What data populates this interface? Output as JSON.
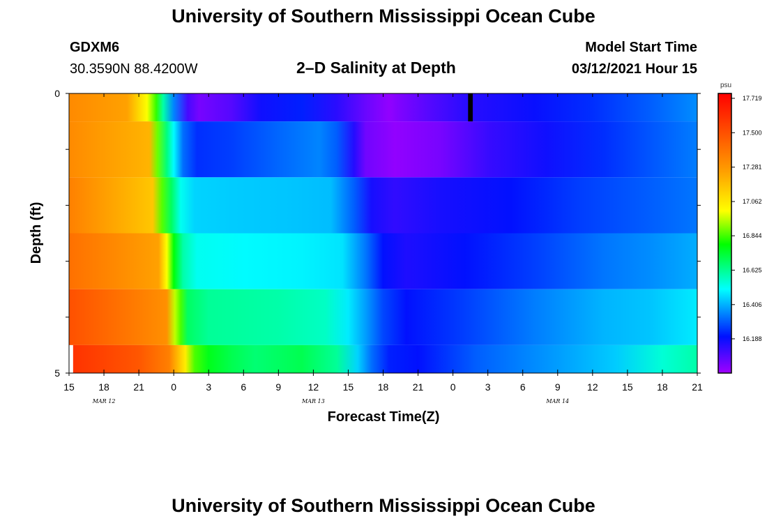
{
  "header": {
    "title": "University of Southern Mississippi Ocean Cube",
    "station_id": "GDXM6",
    "station_coords": "30.3590N 88.4200W",
    "chart_title": "2–D Salinity at Depth",
    "model_label": "Model Start Time",
    "model_start": "03/12/2021 Hour 15"
  },
  "footer": {
    "title": "University of Southern Mississippi Ocean Cube"
  },
  "chart_data": {
    "type": "heatmap",
    "xlabel": "Forecast Time(Z)",
    "ylabel": "Depth (ft)",
    "x_ticks": [
      "15",
      "18",
      "21",
      "0",
      "3",
      "6",
      "9",
      "12",
      "15",
      "18",
      "21",
      "0",
      "3",
      "6",
      "9",
      "12",
      "15",
      "18",
      "21"
    ],
    "x_dates": [
      {
        "label": "MAR 12",
        "tick_index": 1
      },
      {
        "label": "MAR 13",
        "tick_index": 7
      },
      {
        "label": "MAR 14",
        "tick_index": 14
      }
    ],
    "y_ticks": [
      "0",
      "5"
    ],
    "ylim": [
      0,
      5
    ],
    "x_hours": [
      0,
      54
    ],
    "colorbar": {
      "unit": "psu",
      "labels": [
        "17.719",
        "17.500",
        "17.281",
        "17.062",
        "16.844",
        "16.625",
        "16.406",
        "16.188"
      ],
      "min": 15.97,
      "max": 17.75
    },
    "depth_layers": [
      {
        "depth": "0",
        "keys": [
          [
            0,
            17.32
          ],
          [
            5,
            17.25
          ],
          [
            6.7,
            17.0
          ],
          [
            7.5,
            16.83
          ],
          [
            8.1,
            16.6
          ],
          [
            9.0,
            16.35
          ],
          [
            10.2,
            16.1
          ],
          [
            11.2,
            16.03
          ],
          [
            14,
            16.08
          ],
          [
            16.5,
            16.18
          ],
          [
            20,
            16.22
          ],
          [
            23,
            16.14
          ],
          [
            25.5,
            16.05
          ],
          [
            27.5,
            15.99
          ],
          [
            28.5,
            16.02
          ],
          [
            31,
            16.08
          ],
          [
            34,
            16.14
          ],
          [
            40,
            16.19
          ],
          [
            45,
            16.24
          ],
          [
            50,
            16.3
          ],
          [
            54,
            16.36
          ]
        ],
        "missing": [
          [
            34.3,
            34.7
          ]
        ]
      },
      {
        "depth": "1",
        "keys": [
          [
            0,
            17.32
          ],
          [
            6.9,
            17.2
          ],
          [
            7.6,
            16.88
          ],
          [
            8.4,
            16.65
          ],
          [
            9.0,
            16.5
          ],
          [
            9.8,
            16.32
          ],
          [
            11,
            16.24
          ],
          [
            14,
            16.26
          ],
          [
            18,
            16.31
          ],
          [
            21.5,
            16.35
          ],
          [
            23,
            16.3
          ],
          [
            24.5,
            16.15
          ],
          [
            25.5,
            16.04
          ],
          [
            28,
            15.99
          ],
          [
            32,
            16.03
          ],
          [
            36,
            16.12
          ],
          [
            41,
            16.18
          ],
          [
            46,
            16.24
          ],
          [
            54,
            16.34
          ]
        ]
      },
      {
        "depth": "2",
        "keys": [
          [
            0,
            17.35
          ],
          [
            7.2,
            17.15
          ],
          [
            8,
            16.86
          ],
          [
            8.8,
            16.68
          ],
          [
            9.6,
            16.52
          ],
          [
            10.8,
            16.45
          ],
          [
            14,
            16.44
          ],
          [
            19,
            16.43
          ],
          [
            22.5,
            16.42
          ],
          [
            24.5,
            16.3
          ],
          [
            26,
            16.17
          ],
          [
            28,
            16.13
          ],
          [
            32,
            16.17
          ],
          [
            38,
            16.2
          ],
          [
            44,
            16.26
          ],
          [
            50,
            16.3
          ],
          [
            54,
            16.33
          ]
        ]
      },
      {
        "depth": "3",
        "keys": [
          [
            0,
            17.4
          ],
          [
            7.7,
            17.25
          ],
          [
            8.4,
            17.0
          ],
          [
            9,
            16.78
          ],
          [
            9.8,
            16.6
          ],
          [
            11,
            16.52
          ],
          [
            15,
            16.5
          ],
          [
            20,
            16.49
          ],
          [
            23.5,
            16.47
          ],
          [
            25.5,
            16.33
          ],
          [
            27,
            16.2
          ],
          [
            29,
            16.16
          ],
          [
            34,
            16.2
          ],
          [
            40,
            16.26
          ],
          [
            46,
            16.33
          ],
          [
            50,
            16.36
          ],
          [
            54,
            16.4
          ]
        ]
      },
      {
        "depth": "4",
        "keys": [
          [
            0,
            17.5
          ],
          [
            8.4,
            17.3
          ],
          [
            9.1,
            16.95
          ],
          [
            9.6,
            16.85
          ],
          [
            10.2,
            16.68
          ],
          [
            12,
            16.62
          ],
          [
            18,
            16.6
          ],
          [
            22,
            16.57
          ],
          [
            24,
            16.48
          ],
          [
            25.5,
            16.38
          ],
          [
            27,
            16.27
          ],
          [
            29,
            16.2
          ],
          [
            34,
            16.26
          ],
          [
            40,
            16.34
          ],
          [
            46,
            16.41
          ],
          [
            50,
            16.43
          ],
          [
            54,
            16.48
          ]
        ]
      },
      {
        "depth": "5",
        "keys": [
          [
            0,
            17.6
          ],
          [
            6,
            17.48
          ],
          [
            8.6,
            17.35
          ],
          [
            10,
            17.05
          ],
          [
            10.8,
            16.85
          ],
          [
            12,
            16.76
          ],
          [
            14,
            16.7
          ],
          [
            16,
            16.66
          ],
          [
            20,
            16.7
          ],
          [
            23,
            16.62
          ],
          [
            24.8,
            16.45
          ],
          [
            26,
            16.32
          ],
          [
            27.5,
            16.22
          ],
          [
            30,
            16.2
          ],
          [
            35,
            16.3
          ],
          [
            42,
            16.38
          ],
          [
            47,
            16.44
          ],
          [
            51,
            16.55
          ],
          [
            54,
            16.6
          ]
        ],
        "missing": [
          [
            0,
            0.35
          ]
        ]
      }
    ]
  }
}
